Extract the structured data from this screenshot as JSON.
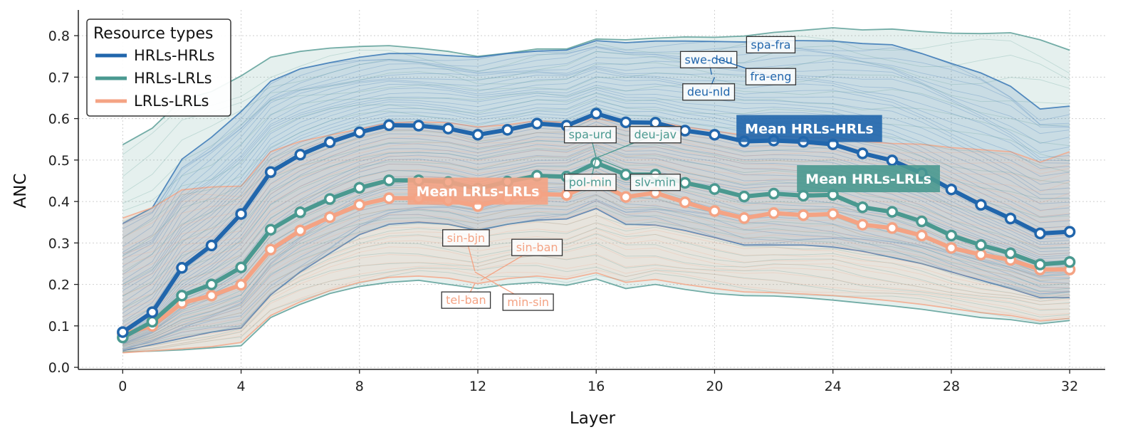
{
  "chart_data": {
    "type": "line",
    "title": "",
    "xlabel": "Layer",
    "ylabel": "ANC",
    "xlim": [
      -1.5,
      33.2
    ],
    "ylim": [
      -0.005,
      0.862
    ],
    "x_ticks": [
      0,
      4,
      8,
      12,
      16,
      20,
      24,
      28,
      32
    ],
    "y_ticks": [
      0.0,
      0.1,
      0.2,
      0.3,
      0.4,
      0.5,
      0.6,
      0.7,
      0.8
    ],
    "y_tick_labels": [
      "0.0",
      "0.1",
      "0.2",
      "0.3",
      "0.4",
      "0.5",
      "0.6",
      "0.7",
      "0.8"
    ],
    "grid": "dotted",
    "legend": {
      "title": "Resource types",
      "position": "top-left",
      "entries": [
        {
          "label": "HRLs-HRLs",
          "color": "#2166ac"
        },
        {
          "label": "HRLs-LRLs",
          "color": "#4a9990"
        },
        {
          "label": "LRLs-LRLs",
          "color": "#f4a384"
        }
      ]
    },
    "colors": {
      "hrl": "#2166ac",
      "mid": "#4a9990",
      "lrl": "#f4a384",
      "hrl_band": "#3a78b6",
      "mid_band": "#5c9f98",
      "lrl_band": "#f3a88b"
    },
    "x": [
      0,
      1,
      2,
      3,
      4,
      5,
      6,
      7,
      8,
      9,
      10,
      11,
      12,
      13,
      14,
      15,
      16,
      17,
      18,
      19,
      20,
      21,
      22,
      23,
      24,
      25,
      26,
      27,
      28,
      29,
      30,
      31,
      32
    ],
    "series": [
      {
        "name": "Mean HRLs-HRLs",
        "group": "hrl",
        "values": [
          0.085,
          0.133,
          0.24,
          0.294,
          0.37,
          0.471,
          0.513,
          0.543,
          0.567,
          0.584,
          0.583,
          0.576,
          0.561,
          0.573,
          0.588,
          0.583,
          0.612,
          0.591,
          0.59,
          0.571,
          0.561,
          0.545,
          0.547,
          0.544,
          0.538,
          0.516,
          0.499,
          0.468,
          0.429,
          0.392,
          0.359,
          0.323,
          0.327
        ]
      },
      {
        "name": "Mean HRLs-LRLs",
        "group": "mid",
        "values": [
          0.072,
          0.11,
          0.173,
          0.2,
          0.241,
          0.332,
          0.374,
          0.406,
          0.433,
          0.451,
          0.451,
          0.447,
          0.431,
          0.448,
          0.462,
          0.46,
          0.493,
          0.465,
          0.465,
          0.445,
          0.43,
          0.412,
          0.419,
          0.414,
          0.416,
          0.386,
          0.375,
          0.352,
          0.318,
          0.295,
          0.275,
          0.248,
          0.254
        ]
      },
      {
        "name": "Mean LRLs-LRLs",
        "group": "lrl",
        "values": [
          0.08,
          0.1,
          0.155,
          0.173,
          0.199,
          0.284,
          0.33,
          0.362,
          0.392,
          0.408,
          0.408,
          0.403,
          0.389,
          0.407,
          0.418,
          0.416,
          0.447,
          0.411,
          0.421,
          0.398,
          0.377,
          0.36,
          0.372,
          0.367,
          0.37,
          0.344,
          0.336,
          0.318,
          0.288,
          0.272,
          0.259,
          0.236,
          0.236
        ]
      }
    ],
    "bands": [
      {
        "name": "HRLs-LRLs range",
        "group": "mid",
        "upper": [
          0.537,
          0.577,
          0.645,
          0.665,
          0.703,
          0.748,
          0.762,
          0.77,
          0.774,
          0.776,
          0.77,
          0.762,
          0.75,
          0.758,
          0.768,
          0.768,
          0.792,
          0.79,
          0.794,
          0.797,
          0.796,
          0.799,
          0.808,
          0.813,
          0.819,
          0.814,
          0.816,
          0.81,
          0.806,
          0.805,
          0.807,
          0.79,
          0.765
        ],
        "lower": [
          0.037,
          0.039,
          0.042,
          0.047,
          0.052,
          0.12,
          0.152,
          0.178,
          0.195,
          0.205,
          0.21,
          0.2,
          0.19,
          0.2,
          0.205,
          0.198,
          0.213,
          0.19,
          0.2,
          0.188,
          0.178,
          0.173,
          0.172,
          0.168,
          0.162,
          0.155,
          0.148,
          0.14,
          0.13,
          0.12,
          0.115,
          0.105,
          0.113
        ]
      },
      {
        "name": "HRLs-HRLs range",
        "group": "hrl",
        "upper": [
          0.347,
          0.385,
          0.502,
          0.555,
          0.617,
          0.69,
          0.72,
          0.735,
          0.748,
          0.757,
          0.757,
          0.752,
          0.748,
          0.757,
          0.763,
          0.765,
          0.788,
          0.783,
          0.787,
          0.787,
          0.786,
          0.785,
          0.788,
          0.788,
          0.787,
          0.781,
          0.778,
          0.757,
          0.733,
          0.71,
          0.678,
          0.623,
          0.63
        ],
        "lower": [
          0.04,
          0.055,
          0.07,
          0.085,
          0.095,
          0.175,
          0.23,
          0.275,
          0.32,
          0.345,
          0.35,
          0.345,
          0.33,
          0.345,
          0.355,
          0.358,
          0.383,
          0.345,
          0.343,
          0.33,
          0.313,
          0.295,
          0.295,
          0.295,
          0.29,
          0.28,
          0.265,
          0.25,
          0.23,
          0.21,
          0.19,
          0.168,
          0.168
        ]
      },
      {
        "name": "LRLs-LRLs range",
        "group": "lrl",
        "upper": [
          0.36,
          0.385,
          0.428,
          0.435,
          0.437,
          0.52,
          0.545,
          0.56,
          0.575,
          0.59,
          0.592,
          0.59,
          0.58,
          0.585,
          0.595,
          0.59,
          0.6,
          0.59,
          0.592,
          0.58,
          0.57,
          0.56,
          0.558,
          0.555,
          0.555,
          0.545,
          0.54,
          0.538,
          0.53,
          0.525,
          0.52,
          0.495,
          0.52
        ],
        "lower": [
          0.035,
          0.04,
          0.045,
          0.05,
          0.06,
          0.125,
          0.158,
          0.185,
          0.205,
          0.217,
          0.22,
          0.215,
          0.202,
          0.214,
          0.22,
          0.213,
          0.228,
          0.205,
          0.212,
          0.2,
          0.19,
          0.182,
          0.18,
          0.177,
          0.173,
          0.167,
          0.16,
          0.152,
          0.142,
          0.132,
          0.125,
          0.112,
          0.118
        ]
      }
    ],
    "annotations": [
      {
        "label": "spa-fra",
        "group": "hrl",
        "text_x": 21.9,
        "text_y": 0.779,
        "point_x": 21.9,
        "point_y": 0.779
      },
      {
        "label": "swe-deu",
        "group": "hrl",
        "text_x": 19.8,
        "text_y": 0.743,
        "point_x": 19.9,
        "point_y": 0.706
      },
      {
        "label": "fra-eng",
        "group": "hrl",
        "text_x": 21.9,
        "text_y": 0.702,
        "point_x": 20.0,
        "point_y": 0.746
      },
      {
        "label": "deu-nld",
        "group": "hrl",
        "text_x": 19.8,
        "text_y": 0.665,
        "point_x": 20.0,
        "point_y": 0.7
      },
      {
        "label": "spa-urd",
        "group": "mid",
        "text_x": 15.8,
        "text_y": 0.562,
        "point_x": 16.0,
        "point_y": 0.505
      },
      {
        "label": "deu-jav",
        "group": "mid",
        "text_x": 18.0,
        "text_y": 0.562,
        "point_x": 16.0,
        "point_y": 0.505
      },
      {
        "label": "pol-min",
        "group": "mid",
        "text_x": 15.8,
        "text_y": 0.447,
        "point_x": 16.0,
        "point_y": 0.505
      },
      {
        "label": "slv-min",
        "group": "mid",
        "text_x": 18.0,
        "text_y": 0.447,
        "point_x": 16.0,
        "point_y": 0.505
      },
      {
        "label": "sin-bjn",
        "group": "lrl",
        "text_x": 11.6,
        "text_y": 0.313,
        "point_x": 11.9,
        "point_y": 0.232
      },
      {
        "label": "sin-ban",
        "group": "lrl",
        "text_x": 14.0,
        "text_y": 0.29,
        "point_x": 12.1,
        "point_y": 0.21
      },
      {
        "label": "tel-ban",
        "group": "lrl",
        "text_x": 11.6,
        "text_y": 0.163,
        "point_x": 11.9,
        "point_y": 0.202
      },
      {
        "label": "min-sin",
        "group": "lrl",
        "text_x": 13.7,
        "text_y": 0.158,
        "point_x": 11.9,
        "point_y": 0.23
      }
    ],
    "mean_labels": [
      {
        "label": "Mean HRLs-HRLs",
        "group": "hrl",
        "x": 23.2,
        "y": 0.576
      },
      {
        "label": "Mean HRLs-LRLs",
        "group": "mid",
        "x": 25.2,
        "y": 0.455
      },
      {
        "label": "Mean LRLs-LRLs",
        "group": "lrl",
        "x": 12.0,
        "y": 0.425
      }
    ]
  }
}
